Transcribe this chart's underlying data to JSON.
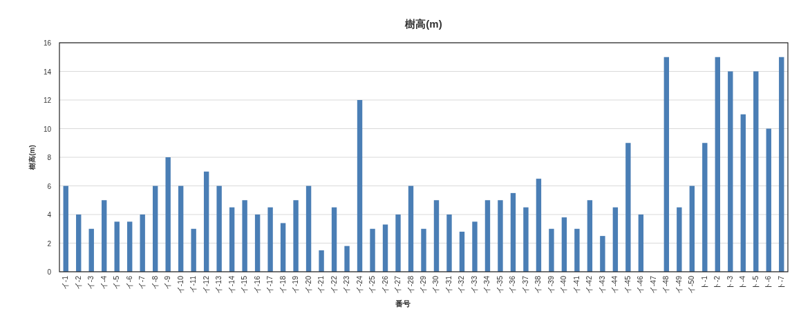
{
  "chart_data": {
    "type": "bar",
    "title": "樹高(m)",
    "xlabel": "番号",
    "ylabel": "樹高(m)",
    "categories": [
      "イ-1",
      "イ-2",
      "イ-3",
      "イ-4",
      "イ-5",
      "イ-6",
      "イ-7",
      "イ-8",
      "イ-9",
      "イ-10",
      "イ-11",
      "イ-12",
      "イ-13",
      "イ-14",
      "イ-15",
      "イ-16",
      "イ-17",
      "イ-18",
      "イ-19",
      "イ-20",
      "イ-21",
      "イ-22",
      "イ-23",
      "イ-24",
      "イ-25",
      "イ-26",
      "イ-27",
      "イ-28",
      "イ-29",
      "イ-30",
      "イ-31",
      "イ-32",
      "イ-33",
      "イ-34",
      "イ-35",
      "イ-36",
      "イ-37",
      "イ-38",
      "イ-39",
      "イ-40",
      "イ-41",
      "イ-42",
      "イ-43",
      "イ-44",
      "イ-45",
      "イ-46",
      "イ-47",
      "イ-48",
      "イ-49",
      "イ-50",
      "ト-1",
      "ト-2",
      "ト-3",
      "ト-4",
      "ト-5",
      "ト-6",
      "ト-7"
    ],
    "values": [
      6,
      4,
      3,
      5,
      3.5,
      3.5,
      4,
      6,
      8,
      6,
      3,
      7,
      6,
      4.5,
      5,
      4,
      4.5,
      3.4,
      5,
      6,
      1.5,
      4.5,
      1.8,
      12,
      3,
      3.3,
      4,
      6,
      3,
      5,
      4,
      2.8,
      3.5,
      5,
      5,
      5.5,
      4.5,
      6.5,
      3,
      3.8,
      3,
      5,
      2.5,
      4.5,
      9,
      4,
      null,
      15,
      4.5,
      6,
      9,
      15,
      14,
      11,
      14,
      10,
      15
    ],
    "color": "#4a7eb5",
    "ylim": [
      0,
      16
    ],
    "yticks": [
      0,
      2,
      4,
      6,
      8,
      10,
      12,
      14,
      16
    ],
    "grid": "y"
  }
}
